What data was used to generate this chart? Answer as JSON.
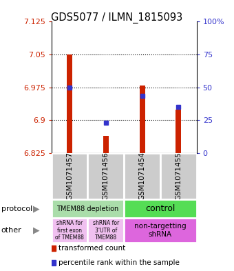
{
  "title": "GDS5077 / ILMN_1815093",
  "samples": [
    "GSM1071457",
    "GSM1071456",
    "GSM1071454",
    "GSM1071455"
  ],
  "red_values": [
    7.05,
    6.865,
    6.98,
    6.925
  ],
  "blue_values": [
    6.975,
    6.895,
    6.955,
    6.93
  ],
  "ymin": 6.825,
  "ymax": 7.125,
  "yticks": [
    6.825,
    6.9,
    6.975,
    7.05,
    7.125
  ],
  "ytick_labels": [
    "6.825",
    "6.9",
    "6.975",
    "7.05",
    "7.125"
  ],
  "right_ytick_pcts": [
    0,
    25,
    50,
    75,
    100
  ],
  "right_ytick_labels": [
    "0",
    "25",
    "50",
    "75",
    "100%"
  ],
  "red_color": "#cc2200",
  "blue_color": "#3333cc",
  "bar_width": 0.15,
  "legend_red": "transformed count",
  "legend_blue": "percentile rank within the sample",
  "protocol_left_color": "#aaddaa",
  "protocol_right_color": "#55dd55",
  "other_left1_color": "#f0c0f0",
  "other_left2_color": "#f0c0f0",
  "other_right_color": "#dd66dd",
  "sample_box_color": "#cccccc",
  "grid_yticks": [
    6.9,
    6.975,
    7.05
  ]
}
